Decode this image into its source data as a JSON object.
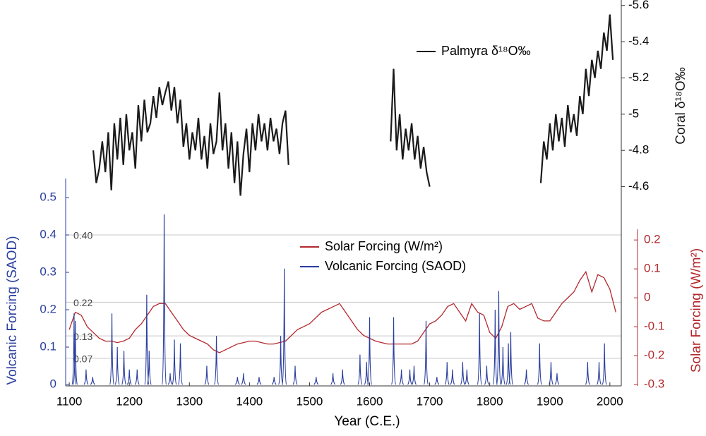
{
  "chart_data": {
    "type": "multi-axis-line",
    "xlabel": "Year (C.E.)",
    "ylabel": "Volcanic Forcing (SAOD)",
    "y2label": "Solar Forcing (W/m²)",
    "y3label": "Coral δ¹⁸O‰",
    "xlim": [
      1094,
      2019
    ],
    "xticks": [
      1100,
      1200,
      1300,
      1400,
      1500,
      1600,
      1700,
      1800,
      1900,
      2000
    ],
    "ylim": [
      0,
      0.551
    ],
    "yticks": [
      0,
      0.1,
      0.2,
      0.3,
      0.4,
      0.5
    ],
    "y2lim": [
      -0.3,
      0.237
    ],
    "y2ticks": [
      -0.3,
      -0.2,
      -0.1,
      0,
      0.1,
      0.2
    ],
    "y3lim": [
      -4.54,
      -5.63
    ],
    "y3ticks": [
      -4.6,
      -4.8,
      -5,
      -5.2,
      -5.4,
      -5.6
    ],
    "reference_lines": [
      {
        "value": 0.4,
        "label": "0.40"
      },
      {
        "value": 0.22,
        "label": "0.22"
      },
      {
        "value": 0.13,
        "label": "0.13"
      },
      {
        "value": 0.07,
        "label": "0.07"
      }
    ],
    "series": [
      {
        "name": "Palmyra δ¹⁸O‰",
        "color": "#1a1a1a",
        "axis": "y3",
        "style": "line",
        "x": [
          1140,
          1145,
          1150,
          1155,
          1160,
          1165,
          1170,
          1175,
          1180,
          1185,
          1190,
          1195,
          1200,
          1205,
          1210,
          1215,
          1220,
          1225,
          1230,
          1235,
          1240,
          1245,
          1250,
          1255,
          1260,
          1265,
          1270,
          1275,
          1280,
          1285,
          1290,
          1295,
          1300,
          1305,
          1310,
          1315,
          1320,
          1325,
          1330,
          1335,
          1340,
          1345,
          1350,
          1355,
          1360,
          1365,
          1370,
          1375,
          1380,
          1385,
          1390,
          1395,
          1400,
          1405,
          1410,
          1415,
          1420,
          1425,
          1430,
          1435,
          1440,
          1445,
          1450,
          1455,
          1460,
          1465,
          1550,
          1635,
          1640,
          1645,
          1650,
          1655,
          1660,
          1665,
          1670,
          1675,
          1680,
          1685,
          1690,
          1695,
          1700,
          1800,
          1885,
          1890,
          1895,
          1900,
          1905,
          1910,
          1915,
          1920,
          1925,
          1930,
          1935,
          1940,
          1945,
          1950,
          1955,
          1960,
          1965,
          1970,
          1975,
          1980,
          1985,
          1990,
          1995,
          2000,
          2005
        ],
        "values": [
          -4.8,
          -4.62,
          -4.7,
          -4.85,
          -4.68,
          -4.9,
          -4.58,
          -4.95,
          -4.75,
          -4.98,
          -4.72,
          -5.0,
          -4.8,
          -4.9,
          -4.7,
          -5.05,
          -4.85,
          -5.08,
          -4.9,
          -4.95,
          -5.1,
          -4.98,
          -5.15,
          -5.05,
          -5.12,
          -5.18,
          -5.02,
          -5.15,
          -4.95,
          -5.08,
          -4.82,
          -4.95,
          -4.75,
          -4.9,
          -4.8,
          -4.98,
          -4.75,
          -4.88,
          -4.7,
          -4.95,
          -4.78,
          -4.85,
          -5.12,
          -4.8,
          -4.95,
          -4.7,
          -4.9,
          -4.62,
          -4.85,
          -4.55,
          -4.78,
          -4.92,
          -4.68,
          -4.95,
          -4.8,
          -5.0,
          -4.85,
          -4.95,
          -4.8,
          -4.98,
          -4.85,
          -4.92,
          -4.78,
          -4.95,
          -5.02,
          -4.72,
          null,
          -4.85,
          -5.25,
          -4.8,
          -5.0,
          -4.75,
          -4.92,
          -4.8,
          -4.95,
          -4.75,
          -4.88,
          -4.7,
          -4.82,
          -4.68,
          -4.6,
          null,
          -4.62,
          -4.85,
          -4.75,
          -4.95,
          -4.8,
          -5.0,
          -4.85,
          -4.98,
          -4.82,
          -5.05,
          -4.9,
          -5.0,
          -4.88,
          -5.1,
          -5.0,
          -5.25,
          -5.1,
          -5.3,
          -5.2,
          -5.35,
          -5.25,
          -5.45,
          -5.35,
          -5.55,
          -5.3
        ]
      },
      {
        "name": "Solar Forcing (W/m²)",
        "color": "#b3282d",
        "axis": "y2",
        "style": "line",
        "x": [
          1100,
          1110,
          1120,
          1130,
          1140,
          1150,
          1160,
          1170,
          1180,
          1190,
          1200,
          1210,
          1220,
          1230,
          1240,
          1250,
          1260,
          1270,
          1280,
          1290,
          1300,
          1310,
          1320,
          1330,
          1340,
          1350,
          1360,
          1370,
          1380,
          1390,
          1400,
          1410,
          1420,
          1430,
          1440,
          1450,
          1460,
          1470,
          1480,
          1490,
          1500,
          1510,
          1520,
          1530,
          1540,
          1550,
          1560,
          1570,
          1580,
          1590,
          1600,
          1610,
          1620,
          1630,
          1640,
          1650,
          1660,
          1670,
          1680,
          1690,
          1700,
          1710,
          1720,
          1730,
          1740,
          1750,
          1760,
          1770,
          1780,
          1790,
          1800,
          1810,
          1820,
          1830,
          1840,
          1850,
          1860,
          1870,
          1880,
          1890,
          1900,
          1910,
          1920,
          1930,
          1940,
          1950,
          1960,
          1970,
          1980,
          1990,
          2000,
          2010
        ],
        "values": [
          -0.11,
          -0.05,
          -0.06,
          -0.1,
          -0.12,
          -0.14,
          -0.15,
          -0.15,
          -0.155,
          -0.15,
          -0.14,
          -0.11,
          -0.09,
          -0.06,
          -0.03,
          -0.02,
          -0.02,
          -0.05,
          -0.08,
          -0.11,
          -0.13,
          -0.14,
          -0.15,
          -0.16,
          -0.18,
          -0.19,
          -0.18,
          -0.17,
          -0.16,
          -0.155,
          -0.15,
          -0.15,
          -0.155,
          -0.16,
          -0.16,
          -0.155,
          -0.15,
          -0.13,
          -0.11,
          -0.1,
          -0.09,
          -0.07,
          -0.05,
          -0.04,
          -0.03,
          -0.02,
          -0.05,
          -0.08,
          -0.11,
          -0.13,
          -0.14,
          -0.15,
          -0.155,
          -0.16,
          -0.16,
          -0.16,
          -0.16,
          -0.16,
          -0.15,
          -0.12,
          -0.09,
          -0.08,
          -0.06,
          -0.03,
          -0.02,
          -0.05,
          -0.08,
          -0.02,
          -0.05,
          -0.06,
          -0.12,
          -0.14,
          -0.1,
          -0.03,
          -0.02,
          -0.04,
          -0.03,
          -0.02,
          -0.07,
          -0.08,
          -0.08,
          -0.05,
          -0.02,
          0.0,
          0.02,
          0.06,
          0.09,
          0.02,
          0.08,
          0.07,
          0.03,
          -0.05
        ]
      },
      {
        "name": "Volcanic Forcing (SAOD)",
        "color": "#2b3f9e",
        "axis": "y",
        "style": "spikes",
        "x": [
          1108,
          1110,
          1128,
          1139,
          1171,
          1180,
          1191,
          1200,
          1213,
          1229,
          1233,
          1258,
          1268,
          1275,
          1285,
          1329,
          1345,
          1380,
          1390,
          1416,
          1441,
          1452,
          1458,
          1476,
          1511,
          1539,
          1555,
          1584,
          1595,
          1600,
          1640,
          1653,
          1667,
          1674,
          1694,
          1712,
          1729,
          1738,
          1755,
          1762,
          1783,
          1795,
          1809,
          1815,
          1822,
          1831,
          1835,
          1861,
          1883,
          1902,
          1912,
          1963,
          1982,
          1991
        ],
        "values": [
          0.19,
          0.17,
          0.04,
          0.02,
          0.19,
          0.1,
          0.09,
          0.04,
          0.04,
          0.24,
          0.09,
          0.455,
          0.03,
          0.12,
          0.11,
          0.05,
          0.13,
          0.02,
          0.03,
          0.02,
          0.02,
          0.13,
          0.31,
          0.05,
          0.02,
          0.03,
          0.04,
          0.08,
          0.06,
          0.18,
          0.18,
          0.04,
          0.04,
          0.05,
          0.17,
          0.02,
          0.06,
          0.04,
          0.06,
          0.04,
          0.19,
          0.05,
          0.2,
          0.25,
          0.1,
          0.11,
          0.14,
          0.04,
          0.11,
          0.06,
          0.03,
          0.06,
          0.06,
          0.11
        ]
      }
    ]
  }
}
